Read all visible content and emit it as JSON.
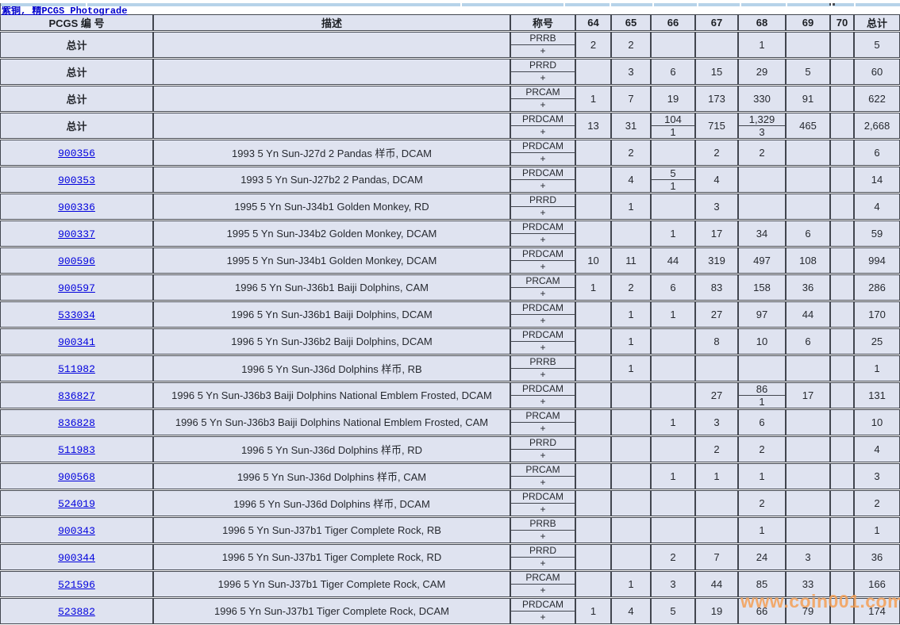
{
  "page": {
    "link_title": "紫铜, 精PCGS Photograde",
    "watermark": "www.coin001.com"
  },
  "colors": {
    "cell_background": "#dfe3f0",
    "border": "#42464f",
    "link_blue": "#0000cc",
    "watermark_orange": "#f5a055",
    "top_band_blue": "#b7d3e9"
  },
  "table": {
    "headers": [
      "PCGS 编 号",
      "描述",
      "称号",
      "64",
      "65",
      "66",
      "67",
      "68",
      "69",
      "70",
      "总计"
    ],
    "rows": [
      {
        "pcgs": "总计",
        "link": false,
        "desc": "",
        "designation": "PRRB",
        "plus": "+",
        "g64": "2",
        "g65": "2",
        "g66": "",
        "g67": "",
        "g68": "1",
        "g69": "",
        "g70": "",
        "total": "5"
      },
      {
        "pcgs": "总计",
        "link": false,
        "desc": "",
        "designation": "PRRD",
        "plus": "+",
        "g64": "",
        "g65": "3",
        "g66": "6",
        "g67": "15",
        "g68": "29",
        "g69": "5",
        "g70": "",
        "total": "60"
      },
      {
        "pcgs": "总计",
        "link": false,
        "desc": "",
        "designation": "PRCAM",
        "plus": "+",
        "g64": "1",
        "g65": "7",
        "g66": "19",
        "g67": "173",
        "g68": "330",
        "g69": "91",
        "g70": "",
        "total": "622"
      },
      {
        "pcgs": "总计",
        "link": false,
        "desc": "",
        "designation": "PRDCAM",
        "plus": "+",
        "g64": "13",
        "g65": "31",
        "g66": {
          "top": "104",
          "bottom": "1"
        },
        "g67": "715",
        "g68": {
          "top": "1,329",
          "bottom": "3"
        },
        "g69": "465",
        "g70": "",
        "total": "2,668"
      },
      {
        "pcgs": "900356",
        "link": true,
        "desc": "1993 5 Yn Sun-J27d 2 Pandas 样币, DCAM",
        "designation": "PRDCAM",
        "plus": "+",
        "g65": "2",
        "g67": "2",
        "g68": "2",
        "total": "6"
      },
      {
        "pcgs": "900353",
        "link": true,
        "desc": "1993 5 Yn Sun-J27b2 2 Pandas, DCAM",
        "designation": "PRDCAM",
        "plus": "+",
        "g65": "4",
        "g66": {
          "top": "5",
          "bottom": "1"
        },
        "g67": "4",
        "total": "14"
      },
      {
        "pcgs": "900336",
        "link": true,
        "desc": "1995 5 Yn Sun-J34b1 Golden Monkey, RD",
        "designation": "PRRD",
        "plus": "+",
        "g65": "1",
        "g67": "3",
        "total": "4"
      },
      {
        "pcgs": "900337",
        "link": true,
        "desc": "1995 5 Yn Sun-J34b2 Golden Monkey, DCAM",
        "designation": "PRDCAM",
        "plus": "+",
        "g66": "1",
        "g67": "17",
        "g68": "34",
        "g69": "6",
        "total": "59"
      },
      {
        "pcgs": "900596",
        "link": true,
        "desc": "1995 5 Yn Sun-J34b1 Golden Monkey, DCAM",
        "designation": "PRDCAM",
        "plus": "+",
        "g64": "10",
        "g65": "11",
        "g66": "44",
        "g67": "319",
        "g68": "497",
        "g69": "108",
        "total": "994"
      },
      {
        "pcgs": "900597",
        "link": true,
        "desc": "1996 5 Yn Sun-J36b1 Baiji Dolphins, CAM",
        "designation": "PRCAM",
        "plus": "+",
        "g64": "1",
        "g65": "2",
        "g66": "6",
        "g67": "83",
        "g68": "158",
        "g69": "36",
        "total": "286"
      },
      {
        "pcgs": "533034",
        "link": true,
        "desc": "1996 5 Yn Sun-J36b1 Baiji Dolphins, DCAM",
        "designation": "PRDCAM",
        "plus": "+",
        "g65": "1",
        "g66": "1",
        "g67": "27",
        "g68": "97",
        "g69": "44",
        "total": "170"
      },
      {
        "pcgs": "900341",
        "link": true,
        "desc": "1996 5 Yn Sun-J36b2 Baiji Dolphins, DCAM",
        "designation": "PRDCAM",
        "plus": "+",
        "g65": "1",
        "g67": "8",
        "g68": "10",
        "g69": "6",
        "total": "25"
      },
      {
        "pcgs": "511982",
        "link": true,
        "desc": "1996 5 Yn Sun-J36d Dolphins 样币, RB",
        "designation": "PRRB",
        "plus": "+",
        "g65": "1",
        "total": "1"
      },
      {
        "pcgs": "836827",
        "link": true,
        "desc": "1996 5 Yn Sun-J36b3 Baiji Dolphins National Emblem Frosted, DCAM",
        "designation": "PRDCAM",
        "plus": "+",
        "g67": "27",
        "g68": {
          "top": "86",
          "bottom": "1"
        },
        "g69": "17",
        "total": "131"
      },
      {
        "pcgs": "836828",
        "link": true,
        "desc": "1996 5 Yn Sun-J36b3 Baiji Dolphins National Emblem Frosted, CAM",
        "designation": "PRCAM",
        "plus": "+",
        "g66": "1",
        "g67": "3",
        "g68": "6",
        "total": "10"
      },
      {
        "pcgs": "511983",
        "link": true,
        "desc": "1996 5 Yn Sun-J36d Dolphins 样币, RD",
        "designation": "PRRD",
        "plus": "+",
        "g67": "2",
        "g68": "2",
        "total": "4"
      },
      {
        "pcgs": "900568",
        "link": true,
        "desc": "1996 5 Yn Sun-J36d Dolphins 样币, CAM",
        "designation": "PRCAM",
        "plus": "+",
        "g66": "1",
        "g67": "1",
        "g68": "1",
        "total": "3"
      },
      {
        "pcgs": "524019",
        "link": true,
        "desc": "1996 5 Yn Sun-J36d Dolphins 样币, DCAM",
        "designation": "PRDCAM",
        "plus": "+",
        "g68": "2",
        "total": "2"
      },
      {
        "pcgs": "900343",
        "link": true,
        "desc": "1996 5 Yn Sun-J37b1 Tiger Complete Rock, RB",
        "designation": "PRRB",
        "plus": "+",
        "g68": "1",
        "total": "1"
      },
      {
        "pcgs": "900344",
        "link": true,
        "desc": "1996 5 Yn Sun-J37b1 Tiger Complete Rock, RD",
        "designation": "PRRD",
        "plus": "+",
        "g66": "2",
        "g67": "7",
        "g68": "24",
        "g69": "3",
        "total": "36"
      },
      {
        "pcgs": "521596",
        "link": true,
        "desc": "1996 5 Yn Sun-J37b1 Tiger Complete Rock, CAM",
        "designation": "PRCAM",
        "plus": "+",
        "g65": "1",
        "g66": "3",
        "g67": "44",
        "g68": "85",
        "g69": "33",
        "total": "166"
      },
      {
        "pcgs": "523882",
        "link": true,
        "desc": "1996 5 Yn Sun-J37b1 Tiger Complete Rock, DCAM",
        "designation": "PRDCAM",
        "plus": "+",
        "g64": "1",
        "g65": "4",
        "g66": "5",
        "g67": "19",
        "g68": "66",
        "g69": "79",
        "total": "174"
      }
    ]
  }
}
